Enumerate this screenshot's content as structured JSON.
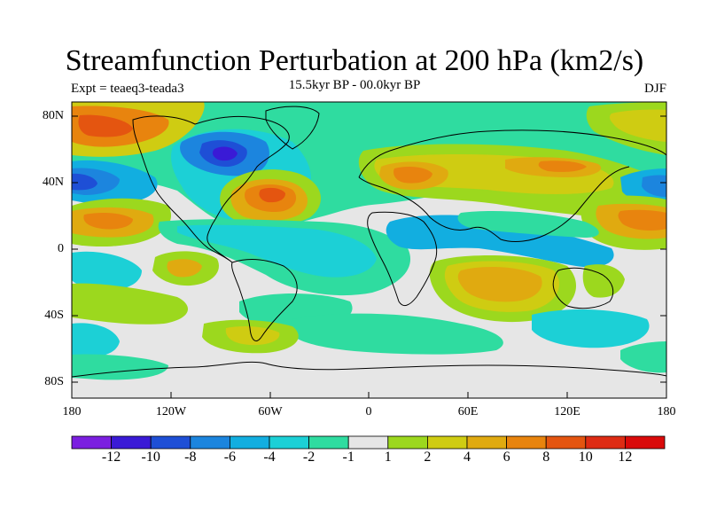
{
  "title": "Streamfunction Perturbation at 200 hPa (km2/s)",
  "experiment": "Expt = teaeq3-teada3",
  "period": "15.5kyr BP - 00.0kyr BP",
  "season": "DJF",
  "lat_labels": [
    "80N",
    "40N",
    "0",
    "40S",
    "80S"
  ],
  "lon_labels": [
    "180",
    "120W",
    "60W",
    "0",
    "60E",
    "120E",
    "180"
  ],
  "colorbar": {
    "labels": [
      "-12",
      "-10",
      "-8",
      "-6",
      "-4",
      "-2",
      "-1",
      "1",
      "2",
      "4",
      "6",
      "8",
      "10",
      "12"
    ],
    "colors": [
      "#7b1fe0",
      "#3a1ad6",
      "#1e4fd6",
      "#1c85de",
      "#12aee0",
      "#1cd0d6",
      "#2fdca0",
      "#e6e6e6",
      "#9cd81e",
      "#cfcc12",
      "#e0aa10",
      "#e8840e",
      "#e45510",
      "#de2c14",
      "#da0a0a"
    ]
  },
  "colors": {
    "background_field": "#e6e6e6",
    "coastline": "#000000"
  }
}
